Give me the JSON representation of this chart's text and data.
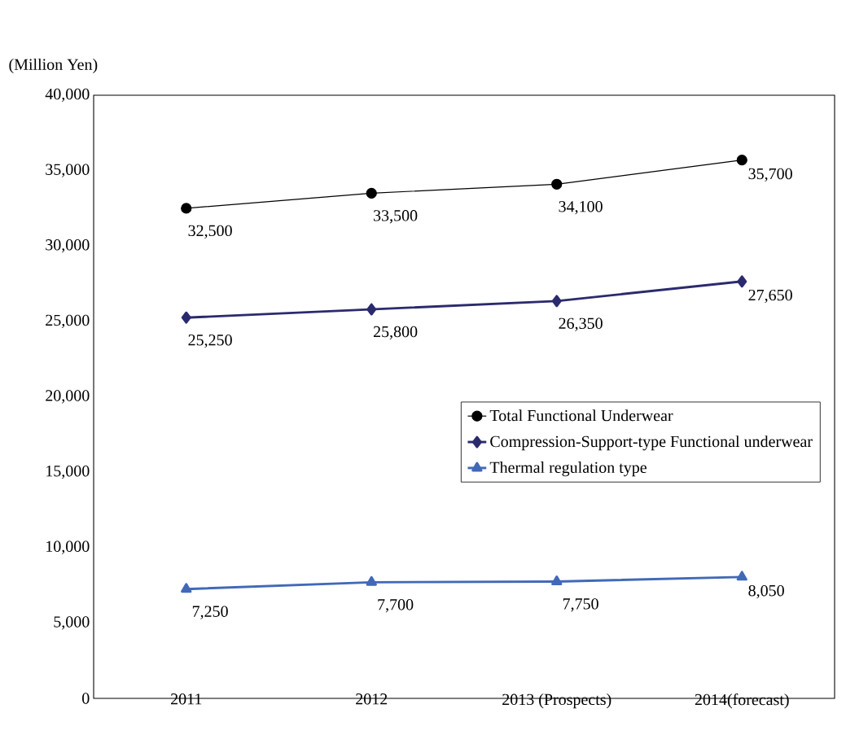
{
  "chart_data": {
    "type": "line",
    "ylabel": "(Million Yen)",
    "categories": [
      "2011",
      "2012",
      "2013 (Prospects)",
      "2014(forecast)"
    ],
    "series": [
      {
        "name": "Total Functional Underwear",
        "color": "#000000",
        "marker": "circle",
        "values": [
          32500,
          33500,
          34100,
          35700
        ],
        "value_labels": [
          "32,500",
          "33,500",
          "34,100",
          "35,700"
        ]
      },
      {
        "name": "Compression-Support-type Functional underwear",
        "color": "#2b2a6e",
        "marker": "diamond",
        "values": [
          25250,
          25800,
          26350,
          27650
        ],
        "value_labels": [
          "25,250",
          "25,800",
          "26,350",
          "27,650"
        ]
      },
      {
        "name": "Thermal regulation type",
        "color": "#4169b8",
        "marker": "triangle",
        "values": [
          7250,
          7700,
          7750,
          8050
        ],
        "value_labels": [
          "7,250",
          "7,700",
          "7,750",
          "8,050"
        ]
      }
    ],
    "ylim": [
      0,
      40000
    ],
    "yticks": [
      0,
      {
        "value": 5000,
        "label": "5,000"
      },
      {
        "value": 10000,
        "label": "10,000"
      },
      {
        "value": 15000,
        "label": "15,000"
      },
      {
        "value": 20000,
        "label": "20,000"
      },
      {
        "value": 25000,
        "label": "25,000"
      },
      {
        "value": 30000,
        "label": "30,000"
      },
      {
        "value": 35000,
        "label": "35,000"
      },
      {
        "value": 40000,
        "label": "40,000"
      }
    ],
    "grid": false,
    "legend": "right",
    "line_style": "solid"
  }
}
